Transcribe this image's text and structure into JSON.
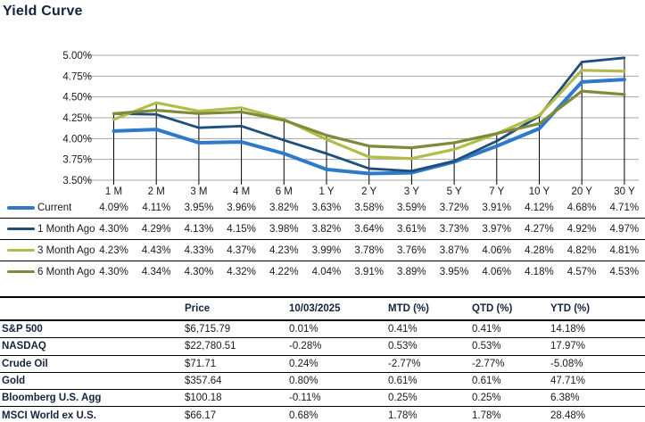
{
  "title": "Yield Curve",
  "colors": {
    "title_navy": "#15233c",
    "gridline": "#a6a6a6",
    "axis_text": "#1a1a1a",
    "drop_line": "#000000",
    "series_current": "#2e79c9",
    "series_1mo": "#1f4e79",
    "series_3mo": "#b2bc4a",
    "series_6mo": "#7f8b3a"
  },
  "chart_data": {
    "type": "line",
    "title": "Yield Curve",
    "categories": [
      "1 M",
      "2 M",
      "3 M",
      "4 M",
      "6 M",
      "1 Y",
      "2 Y",
      "3 Y",
      "5 Y",
      "7 Y",
      "10 Y",
      "20 Y",
      "30 Y"
    ],
    "series": [
      {
        "name": "Current",
        "color": "#2e79c9",
        "stroke_width": 4,
        "values": [
          4.09,
          4.11,
          3.95,
          3.96,
          3.82,
          3.63,
          3.58,
          3.59,
          3.72,
          3.91,
          4.12,
          4.68,
          4.71
        ]
      },
      {
        "name": "1 Month Ago",
        "color": "#1f4e79",
        "stroke_width": 2.8,
        "values": [
          4.3,
          4.29,
          4.13,
          4.15,
          3.98,
          3.82,
          3.64,
          3.61,
          3.73,
          3.97,
          4.27,
          4.92,
          4.97
        ]
      },
      {
        "name": "3 Month Ago",
        "color": "#b2bc4a",
        "stroke_width": 3.2,
        "values": [
          4.23,
          4.43,
          4.33,
          4.37,
          4.23,
          3.99,
          3.78,
          3.76,
          3.87,
          4.06,
          4.28,
          4.82,
          4.81
        ]
      },
      {
        "name": "6 Month Ago",
        "color": "#7f8b3a",
        "stroke_width": 3.2,
        "values": [
          4.3,
          4.34,
          4.3,
          4.32,
          4.22,
          4.04,
          3.91,
          3.89,
          3.95,
          4.06,
          4.18,
          4.57,
          4.53
        ]
      }
    ],
    "xlabel": "",
    "ylabel": "",
    "ylim": [
      3.5,
      5.0
    ],
    "ytick_step": 0.25,
    "ytick_format": "percent_2dp",
    "grid": true,
    "drop_lines": true,
    "legend_position": "left-of-value-table",
    "value_format": "percent_2dp"
  },
  "market_table": {
    "headers": {
      "label": "",
      "price": "Price",
      "date": "10/03/2025",
      "mtd": "MTD (%)",
      "qtd": "QTD (%)",
      "ytd": "YTD (%)"
    },
    "rows": [
      {
        "label": "S&P 500",
        "price": "$6,715.79",
        "date": "0.01%",
        "mtd": "0.41%",
        "qtd": "0.41%",
        "ytd": "14.18%"
      },
      {
        "label": "NASDAQ",
        "price": "$22,780.51",
        "date": "-0.28%",
        "mtd": "0.53%",
        "qtd": "0.53%",
        "ytd": "17.97%"
      },
      {
        "label": "Crude Oil",
        "price": "$71.71",
        "date": "0.24%",
        "mtd": "-2.77%",
        "qtd": "-2.77%",
        "ytd": "-5.08%"
      },
      {
        "label": "Gold",
        "price": "$357.64",
        "date": "0.80%",
        "mtd": "0.61%",
        "qtd": "0.61%",
        "ytd": "47.71%"
      },
      {
        "label": "Bloomberg U.S. Agg",
        "price": "$100.18",
        "date": "-0.11%",
        "mtd": "0.25%",
        "qtd": "0.25%",
        "ytd": "6.38%"
      },
      {
        "label": "MSCI World ex U.S.",
        "price": "$66.17",
        "date": "0.68%",
        "mtd": "1.78%",
        "qtd": "1.78%",
        "ytd": "28.48%"
      }
    ]
  }
}
